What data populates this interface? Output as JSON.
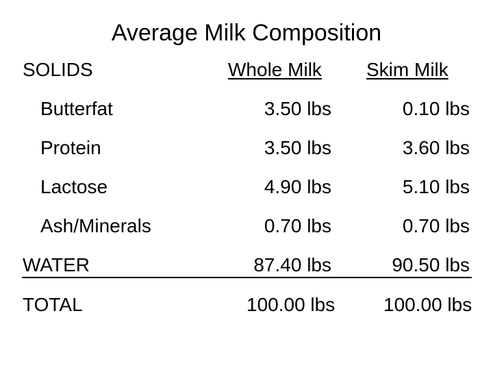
{
  "title": "Average Milk Composition",
  "solids_label": "SOLIDS",
  "columns": [
    "Whole Milk",
    "Skim Milk"
  ],
  "solids_rows": [
    {
      "label": "Butterfat",
      "whole": "3.50 lbs",
      "skim": "0.10 lbs"
    },
    {
      "label": "Protein",
      "whole": "3.50 lbs",
      "skim": "3.60 lbs"
    },
    {
      "label": "Lactose",
      "whole": "4.90 lbs",
      "skim": "5.10 lbs"
    },
    {
      "label": "Ash/Minerals",
      "whole": "0.70 lbs",
      "skim": "0.70 lbs"
    }
  ],
  "water": {
    "label": "WATER",
    "whole": "87.40 lbs",
    "skim": "90.50 lbs"
  },
  "total": {
    "label": "TOTAL",
    "whole": "100.00 lbs",
    "skim": "100.00 lbs"
  }
}
